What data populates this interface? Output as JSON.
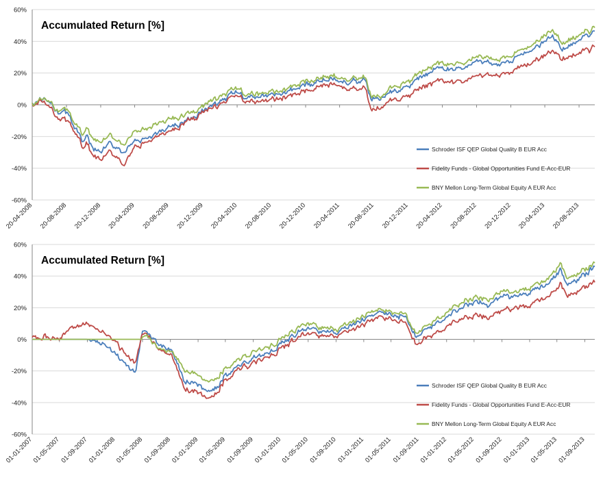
{
  "colors": {
    "schroder": "#4a7ebb",
    "fidelity": "#be4b48",
    "bny": "#98b954",
    "grid": "#d9d9d9",
    "axis": "#868686"
  },
  "chart_data": [
    {
      "type": "line",
      "title": "Accumulated Return [%]",
      "xlabel": "",
      "ylabel": "",
      "ylim": [
        -60,
        60
      ],
      "ytick_labels": [
        "60%",
        "40%",
        "20%",
        "0%",
        "-20%",
        "-40%",
        "-60%"
      ],
      "grid": "horizontal",
      "legend_position": "bottom-right",
      "x_tick_labels": [
        "20-04-2008",
        "20-08-2008",
        "20-12-2008",
        "20-04-2009",
        "20-08-2009",
        "20-12-2009",
        "20-04-2010",
        "20-08-2010",
        "20-12-2010",
        "20-04-2011",
        "20-08-2011",
        "20-12-2011",
        "20-04-2012",
        "20-08-2012",
        "20-12-2012",
        "20-04-2013",
        "20-08-2013"
      ],
      "x": [
        "20-04-2008",
        "01-06-2008",
        "20-07-2008",
        "20-08-2008",
        "15-09-2008",
        "20-10-2008",
        "01-11-2008",
        "20-11-2008",
        "20-12-2008",
        "20-01-2009",
        "20-02-2009",
        "09-03-2009",
        "20-04-2009",
        "20-06-2009",
        "20-08-2009",
        "20-10-2009",
        "20-12-2009",
        "20-02-2010",
        "20-04-2010",
        "20-05-2010",
        "20-06-2010",
        "20-08-2010",
        "20-10-2010",
        "20-12-2010",
        "20-02-2011",
        "20-04-2011",
        "20-05-2011",
        "20-07-2011",
        "10-08-2011",
        "20-09-2011",
        "20-10-2011",
        "20-12-2011",
        "20-02-2012",
        "20-04-2012",
        "20-06-2012",
        "20-08-2012",
        "20-10-2012",
        "20-12-2012",
        "20-02-2013",
        "15-05-2013",
        "20-06-2013",
        "20-08-2013",
        "15-10-2013"
      ],
      "series": [
        {
          "name": "Schroder ISF QEP Global Quality B EUR Acc",
          "values": [
            0,
            4,
            -4,
            -5,
            -12,
            -24,
            -20,
            -28,
            -30,
            -25,
            -27,
            -30,
            -24,
            -20,
            -14,
            -10,
            -4,
            2,
            8,
            4,
            5,
            6,
            8,
            12,
            16,
            17,
            14,
            16,
            4,
            4,
            7,
            11,
            19,
            23,
            22,
            27,
            25,
            28,
            33,
            43,
            35,
            41,
            46
          ]
        },
        {
          "name": "Fidelity Funds - Global Opportunities Fund E-Acc-EUR",
          "values": [
            0,
            2,
            -8,
            -10,
            -15,
            -28,
            -25,
            -32,
            -35,
            -30,
            -33,
            -38,
            -28,
            -22,
            -17,
            -11,
            -5,
            0,
            6,
            2,
            2,
            3,
            5,
            8,
            13,
            14,
            10,
            11,
            -3,
            -2,
            2,
            5,
            12,
            15,
            14,
            18,
            18,
            21,
            25,
            34,
            29,
            33,
            36
          ]
        },
        {
          "name": "BNY Mellon Long-Term Global Equity A EUR Acc",
          "values": [
            0,
            4,
            -3,
            -3,
            -10,
            -20,
            -15,
            -22,
            -24,
            -20,
            -22,
            -25,
            -18,
            -14,
            -9,
            -6,
            -1,
            5,
            11,
            6,
            7,
            8,
            10,
            14,
            18,
            19,
            16,
            18,
            6,
            5,
            10,
            14,
            22,
            26,
            25,
            30,
            28,
            31,
            36,
            47,
            39,
            44,
            48
          ]
        }
      ]
    },
    {
      "type": "line",
      "title": "Accumulated Return [%]",
      "xlabel": "",
      "ylabel": "",
      "ylim": [
        -60,
        60
      ],
      "ytick_labels": [
        "60%",
        "40%",
        "20%",
        "0%",
        "-20%",
        "-40%",
        "-60%"
      ],
      "grid": "horizontal",
      "legend_position": "bottom-right",
      "x_tick_labels": [
        "01-01-2007",
        "01-05-2007",
        "01-09-2007",
        "01-01-2008",
        "01-05-2008",
        "01-09-2008",
        "01-01-2009",
        "01-05-2009",
        "01-09-2009",
        "01-01-2010",
        "01-05-2010",
        "01-09-2010",
        "01-01-2011",
        "01-05-2011",
        "01-09-2011",
        "01-01-2012",
        "01-05-2012",
        "01-09-2012",
        "01-01-2013",
        "01-05-2013",
        "01-09-2013"
      ],
      "x": [
        "01-01-2007",
        "01-03-2007",
        "01-05-2007",
        "01-07-2007",
        "01-09-2007",
        "01-11-2007",
        "01-01-2008",
        "01-03-2008",
        "01-04-2008",
        "01-05-2008",
        "20-05-2008",
        "01-07-2008",
        "01-09-2008",
        "01-11-2008",
        "01-01-2009",
        "09-03-2009",
        "01-05-2009",
        "01-07-2009",
        "01-09-2009",
        "01-11-2009",
        "01-01-2010",
        "01-03-2010",
        "01-05-2010",
        "01-07-2010",
        "01-09-2010",
        "01-11-2010",
        "01-01-2011",
        "01-03-2011",
        "01-05-2011",
        "01-07-2011",
        "15-08-2011",
        "01-11-2011",
        "01-01-2012",
        "01-03-2012",
        "01-05-2012",
        "01-07-2012",
        "01-09-2012",
        "01-11-2012",
        "01-01-2013",
        "01-03-2013",
        "15-05-2013",
        "15-06-2013",
        "01-09-2013",
        "15-10-2013"
      ],
      "series": [
        {
          "name": "Schroder ISF QEP Global Quality B EUR Acc",
          "values": [
            0,
            0,
            0,
            0,
            0,
            -2,
            -10,
            -18,
            -20,
            4,
            5,
            -2,
            -5,
            -25,
            -30,
            -34,
            -22,
            -18,
            -12,
            -10,
            -3,
            3,
            7,
            6,
            4,
            9,
            12,
            17,
            16,
            14,
            3,
            8,
            14,
            20,
            24,
            22,
            27,
            26,
            30,
            33,
            44,
            35,
            41,
            46
          ]
        },
        {
          "name": "Fidelity Funds - Global Opportunities Fund E-Acc-EUR",
          "values": [
            0,
            2,
            0,
            8,
            10,
            5,
            -2,
            -12,
            -14,
            2,
            4,
            -5,
            -8,
            -30,
            -35,
            -38,
            -25,
            -20,
            -15,
            -12,
            -6,
            0,
            4,
            3,
            2,
            6,
            9,
            14,
            13,
            11,
            -2,
            2,
            8,
            13,
            15,
            14,
            18,
            19,
            22,
            25,
            35,
            28,
            33,
            36
          ]
        },
        {
          "name": "BNY Mellon Long-Term Global Equity A EUR Acc",
          "values": [
            0,
            0,
            0,
            0,
            0,
            0,
            0,
            0,
            0,
            0,
            3,
            -5,
            -6,
            -18,
            -24,
            -28,
            -18,
            -14,
            -8,
            -6,
            0,
            6,
            10,
            8,
            6,
            11,
            14,
            19,
            18,
            16,
            5,
            10,
            17,
            23,
            27,
            25,
            30,
            29,
            33,
            36,
            48,
            39,
            44,
            48
          ]
        }
      ]
    }
  ]
}
